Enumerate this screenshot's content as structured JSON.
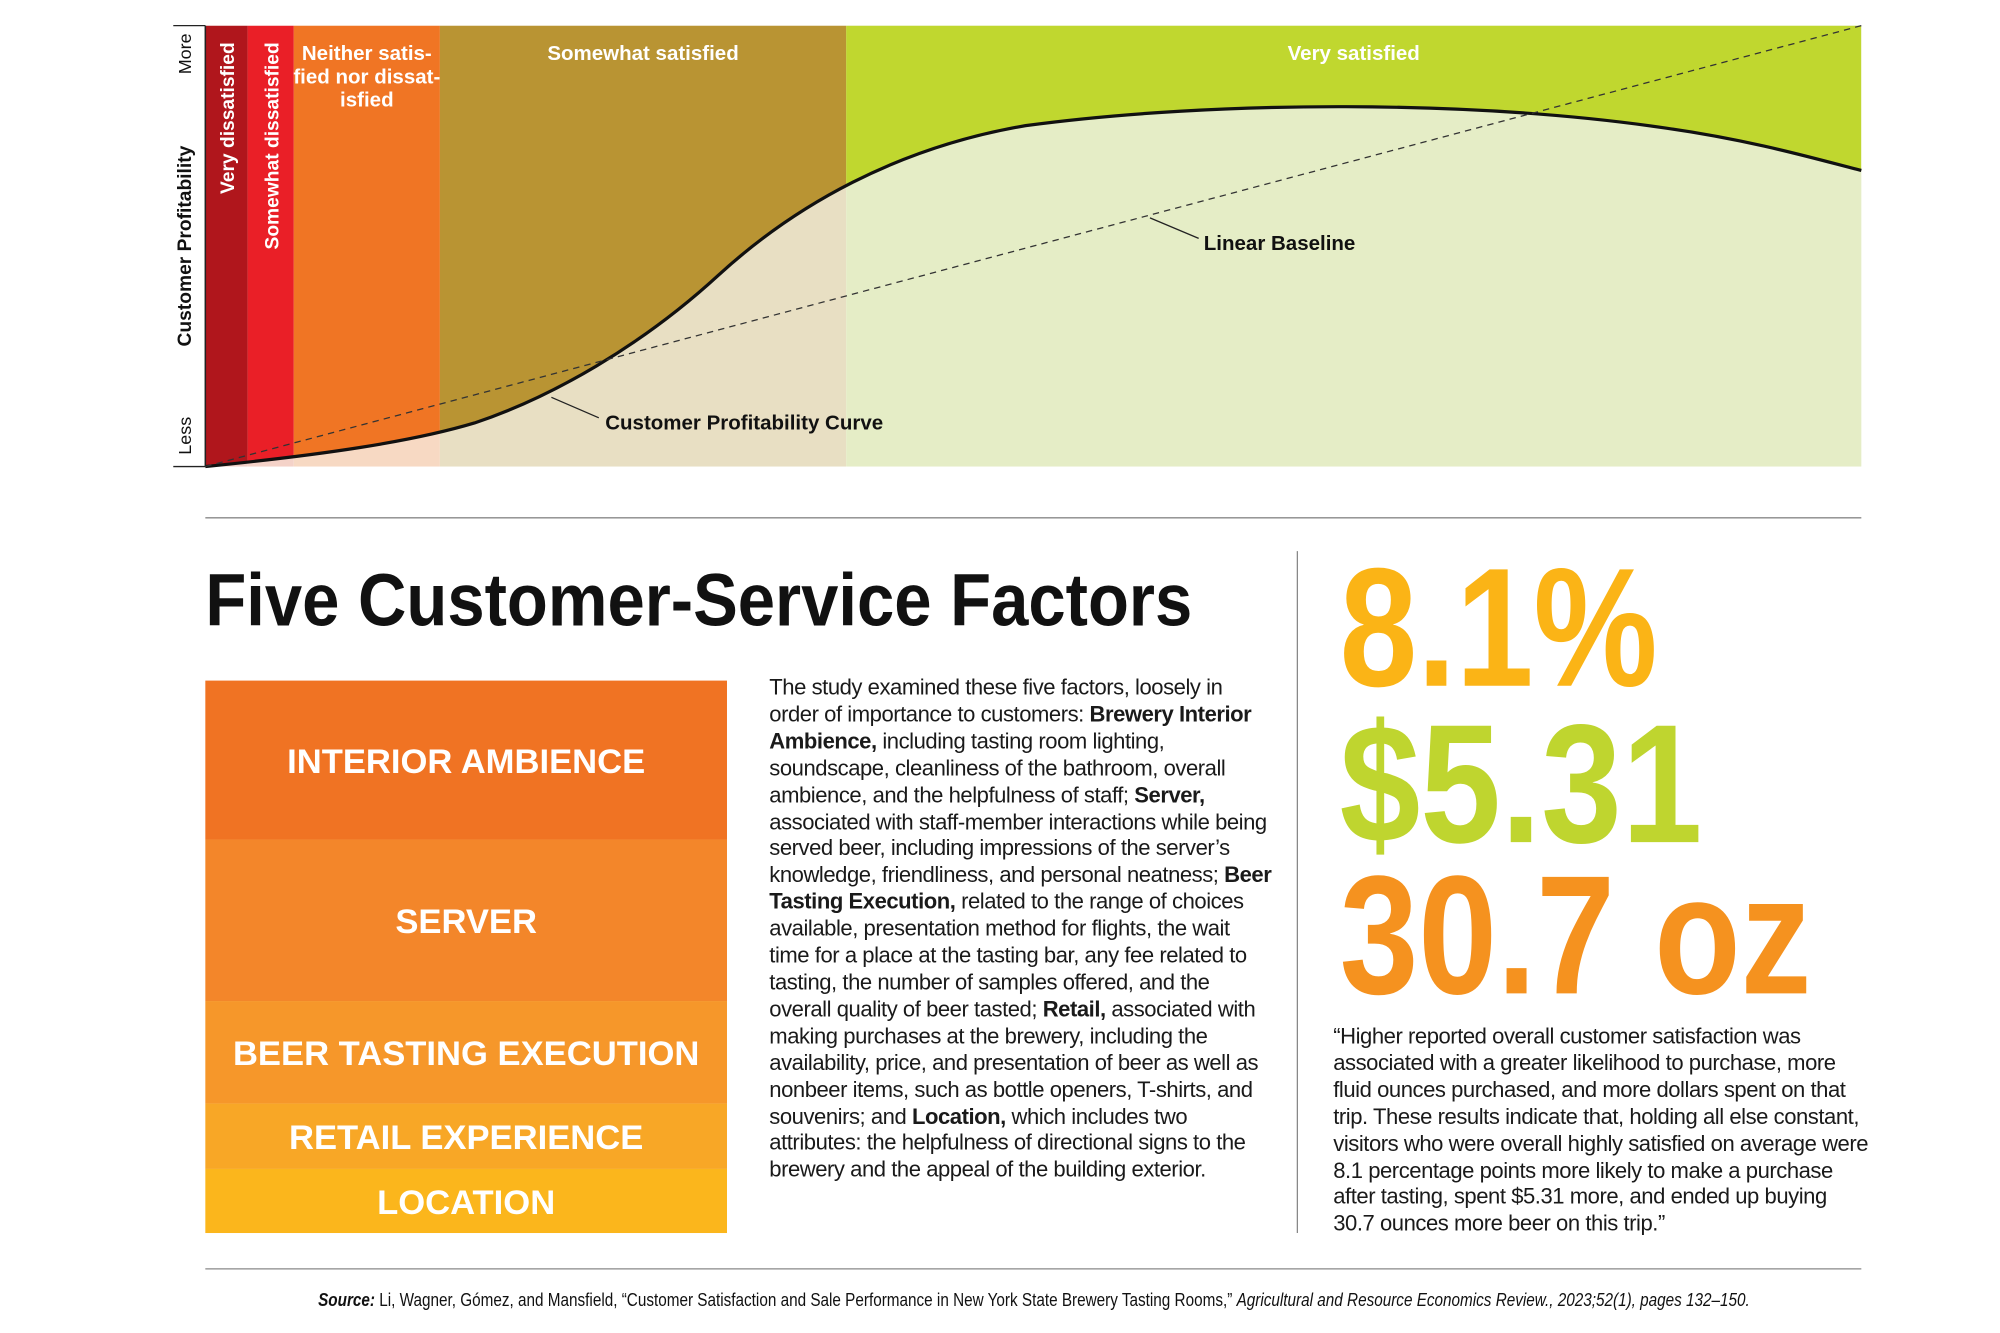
{
  "diagram": {
    "y_axis_label": "Customer Profitability",
    "y_axis_top": "More",
    "y_axis_bottom": "Less",
    "zones": [
      {
        "label_lines": [
          "Very dissatisfied"
        ],
        "color": "#b0161c",
        "light": "#f0cfc6"
      },
      {
        "label_lines": [
          "Somewhat dissatisfied"
        ],
        "color": "#ea1f27",
        "light": "#f4d2c8"
      },
      {
        "label_lines": [
          "Neither satis-",
          "fied nor dissat-",
          "isfied"
        ],
        "color": "#f07524",
        "light": "#f7d9c3"
      },
      {
        "label_lines": [
          "Somewhat satisfied"
        ],
        "color": "#b99433",
        "light": "#e8dfc3"
      },
      {
        "label_lines": [
          "Very satisfied"
        ],
        "color": "#c0d72f",
        "light": "#e5edc6"
      }
    ],
    "curve_label": "Customer Profitability Curve",
    "baseline_label": "Linear Baseline"
  },
  "factors": {
    "title": "Five Customer-Service Factors",
    "blocks": [
      {
        "label": "INTERIOR AMBIENCE",
        "color": "#f07323"
      },
      {
        "label": "SERVER",
        "color": "#f3862a"
      },
      {
        "label": "BEER TASTING EXECUTION",
        "color": "#f6972a"
      },
      {
        "label": "RETAIL EXPERIENCE",
        "color": "#f8a726"
      },
      {
        "label": "LOCATION",
        "color": "#fbb61c"
      }
    ],
    "description": [
      {
        "text": "The study examined these five factors, loosely in order of importance to customers: ",
        "bold": false
      },
      {
        "text": "Brewery Interior Ambience,",
        "bold": true
      },
      {
        "text": " including tasting room lighting, soundscape, cleanliness of the bathroom, overall ambience, and the helpfulness of staff; ",
        "bold": false
      },
      {
        "text": "Server,",
        "bold": true
      },
      {
        "text": " associated with staff-member interactions while being served beer, including impressions of the server’s knowledge, friendliness, and personal neatness; ",
        "bold": false
      },
      {
        "text": "Beer Tasting Execution,",
        "bold": true
      },
      {
        "text": " related to the range of choices available, presentation method for flights, the wait time for a place at the tasting bar, any fee related to tasting, the number of samples offered, and the overall quality of beer tasted; ",
        "bold": false
      },
      {
        "text": "Retail,",
        "bold": true
      },
      {
        "text": " associated with making purchases at the brewery, including the availability, price, and presentation of beer as well as nonbeer items, such as bottle openers, T-shirts, and souvenirs; and ",
        "bold": false
      },
      {
        "text": "Location,",
        "bold": true
      },
      {
        "text": " which includes two attributes: the helpfulness of directional signs to the brewery and the appeal of the building exterior.",
        "bold": false
      }
    ]
  },
  "stats": {
    "items": [
      {
        "text": "8.1%",
        "color": "#fbb416"
      },
      {
        "text": "$5.31",
        "color": "#bfd52f"
      },
      {
        "text": "30.7 oz",
        "color": "#f5921f"
      }
    ],
    "quote": "“Higher reported overall customer satisfaction was associated with a greater likelihood to purchase, more fluid ounces purchased, and more dollars spent on that trip. These results indicate that, holding all else constant, visitors who were overall highly satisfied on average were 8.1 percentage points more likely to make a purchase after tasting, spent $5.31 more, and ended up buying 30.7 ounces more beer on this trip.”"
  },
  "source": [
    {
      "text": "Source:",
      "style": "bold-italic"
    },
    {
      "text": " Li, Wagner, Gómez, and Mansfield, “Customer Satisfaction and Sale Performance in New York State Brewery Tasting Rooms,” ",
      "style": "normal"
    },
    {
      "text": "Agricultural and Resource Economics Review., 2023;52(1), pages 132–150.",
      "style": "italic"
    }
  ]
}
